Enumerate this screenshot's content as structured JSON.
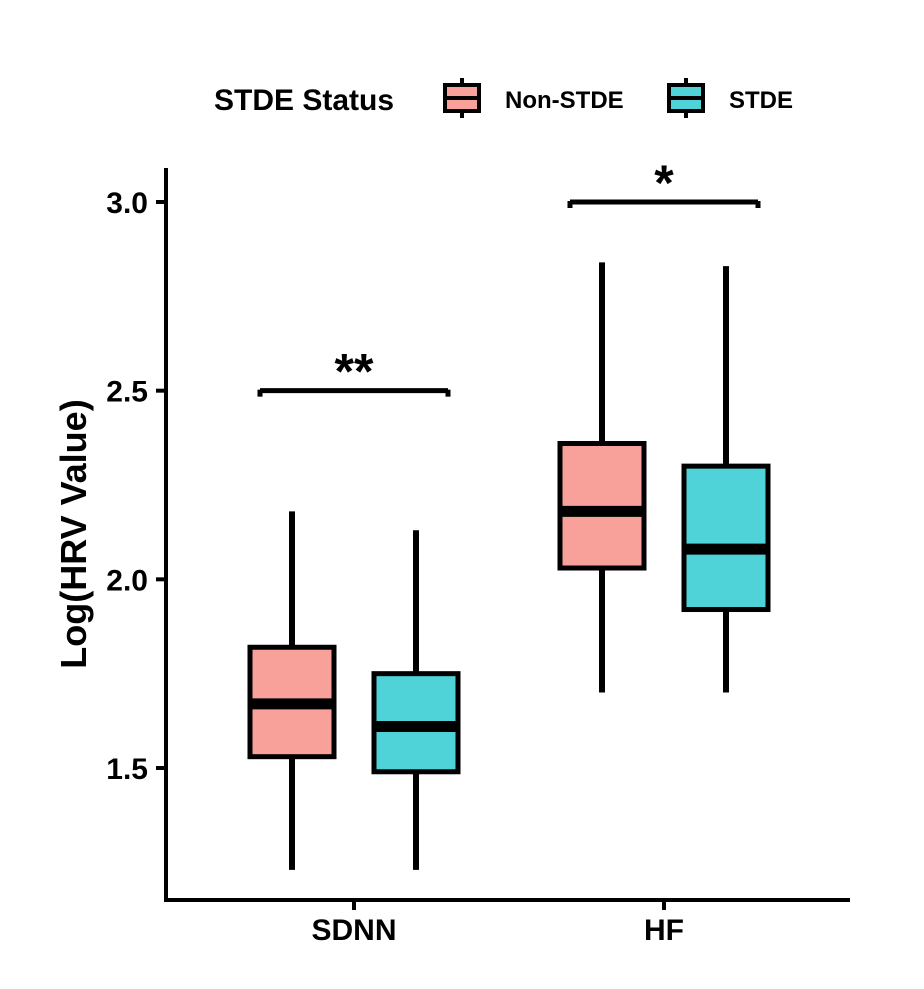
{
  "chart_data": {
    "type": "boxplot",
    "title": "",
    "xlabel": "",
    "ylabel": "Log(HRV Value)",
    "ylim": [
      1.22,
      3.08
    ],
    "yticks": [
      1.5,
      2.0,
      2.5,
      3.0
    ],
    "ytick_labels": [
      "1.5",
      "2.0",
      "2.5",
      "3.0"
    ],
    "categories": [
      "SDNN",
      "HF"
    ],
    "legend": {
      "title": "STDE Status",
      "position": "top",
      "entries": [
        "Non-STDE",
        "STDE"
      ]
    },
    "series": [
      {
        "name": "Non-STDE",
        "color": "#F8A09A",
        "boxes": [
          {
            "category": "SDNN",
            "whisker_low": 1.23,
            "q1": 1.53,
            "median": 1.67,
            "q3": 1.82,
            "whisker_high": 2.18
          },
          {
            "category": "HF",
            "whisker_low": 1.7,
            "q1": 2.03,
            "median": 2.18,
            "q3": 2.36,
            "whisker_high": 2.84
          }
        ]
      },
      {
        "name": "STDE",
        "color": "#4FD3D8",
        "boxes": [
          {
            "category": "SDNN",
            "whisker_low": 1.23,
            "q1": 1.49,
            "median": 1.61,
            "q3": 1.75,
            "whisker_high": 2.13
          },
          {
            "category": "HF",
            "whisker_low": 1.7,
            "q1": 1.92,
            "median": 2.08,
            "q3": 2.3,
            "whisker_high": 2.83
          }
        ]
      }
    ],
    "annotations": [
      {
        "category": "SDNN",
        "label": "**",
        "y": 2.5
      },
      {
        "category": "HF",
        "label": "*",
        "y": 3.0
      }
    ]
  }
}
